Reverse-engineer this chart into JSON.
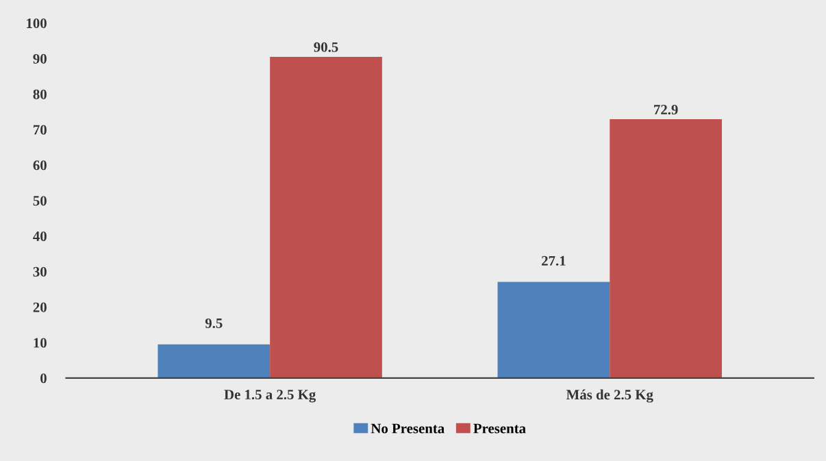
{
  "chart_data": {
    "type": "bar",
    "categories": [
      "De 1.5 a 2.5 Kg",
      "Más de 2.5 Kg"
    ],
    "series": [
      {
        "name": "No Presenta",
        "color": "#4f81bd",
        "values": [
          9.5,
          27.1
        ]
      },
      {
        "name": "Presenta",
        "color": "#c0504d",
        "values": [
          90.5,
          72.9
        ]
      }
    ],
    "ylim": [
      0,
      100
    ],
    "yticks": [
      0,
      10,
      20,
      30,
      40,
      50,
      60,
      70,
      80,
      90,
      100
    ],
    "grid": false,
    "legend": "bottom",
    "data_labels": true
  }
}
